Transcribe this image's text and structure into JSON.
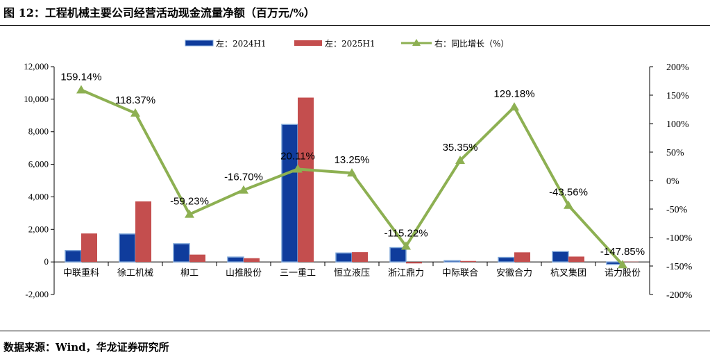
{
  "header": {
    "title": "图 12：工程机械主要公司经营活动现金流量净额（百万元/%）"
  },
  "footer": {
    "source": "数据来源：Wind，华龙证券研究所"
  },
  "chart_data": {
    "type": "bar",
    "categories": [
      "中联重科",
      "徐工机械",
      "柳工",
      "山推股份",
      "三一重工",
      "恒立液压",
      "浙江鼎力",
      "中际联合",
      "安徽合力",
      "杭叉集团",
      "诺力股份"
    ],
    "series": [
      {
        "name": "左：2024H1",
        "type": "bar",
        "axis": "left",
        "color": "#0f3c9c",
        "values": [
          700,
          1720,
          1120,
          300,
          8450,
          550,
          880,
          80,
          280,
          640,
          -150
        ]
      },
      {
        "name": "左：2025H1",
        "type": "bar",
        "axis": "left",
        "color": "#c44e4e",
        "values": [
          1750,
          3720,
          450,
          230,
          10100,
          600,
          -90,
          60,
          590,
          330,
          20
        ]
      },
      {
        "name": "右：同比增长（%）",
        "type": "line",
        "axis": "right",
        "color": "#8db052",
        "values": [
          159.14,
          118.37,
          -59.23,
          -16.7,
          20.11,
          13.25,
          -115.22,
          35.35,
          129.18,
          -43.56,
          -147.85
        ],
        "labels": [
          "159.14%",
          "118.37%",
          "-59.23%",
          "-16.70%",
          "20.11%",
          "13.25%",
          "-115.22%",
          "35.35%",
          "129.18%",
          "-43.56%",
          "-147.85%"
        ]
      }
    ],
    "left_axis": {
      "ylim": [
        -2000,
        12000
      ],
      "ticks": [
        -2000,
        0,
        2000,
        4000,
        6000,
        8000,
        10000,
        12000
      ],
      "tick_labels": [
        "-2,000",
        "0",
        "2,000",
        "4,000",
        "6,000",
        "8,000",
        "10,000",
        "12,000"
      ]
    },
    "right_axis": {
      "ylim": [
        -200,
        200
      ],
      "ticks": [
        -200,
        -150,
        -100,
        -50,
        0,
        50,
        100,
        150,
        200
      ],
      "tick_labels": [
        "-200%",
        "-150%",
        "-100%",
        "-50%",
        "0%",
        "50%",
        "100%",
        "150%",
        "200%"
      ]
    },
    "legend_position": "top",
    "grid": false
  }
}
